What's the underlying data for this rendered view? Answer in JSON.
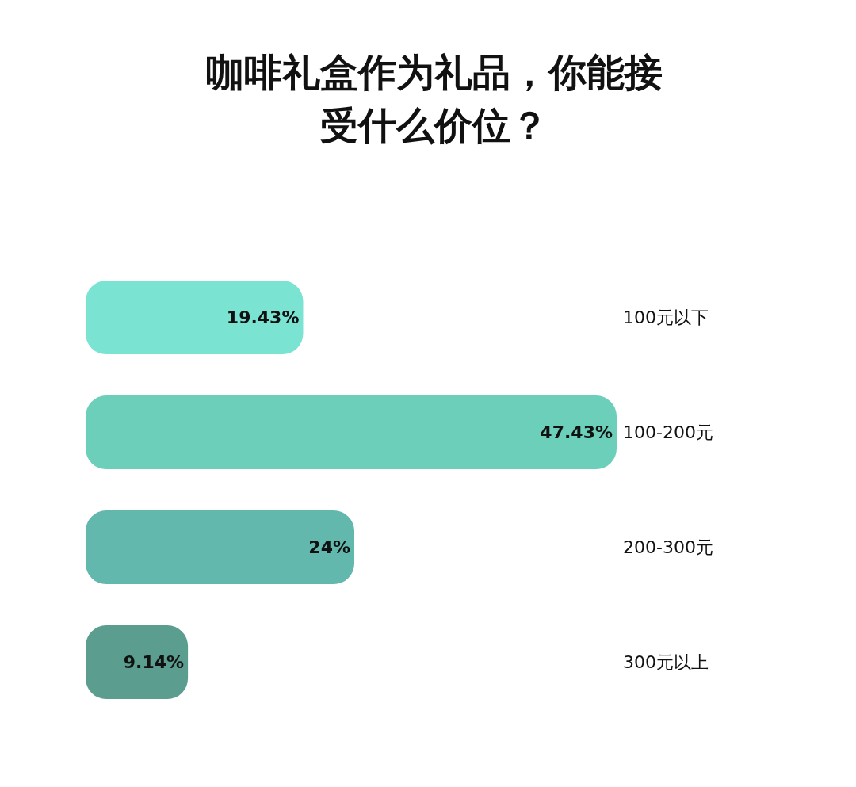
{
  "chart_data": {
    "type": "bar",
    "orientation": "horizontal",
    "title": "咖啡礼盒作为礼品，你能接受什么价位？",
    "categories": [
      "100元以下",
      "100-200元",
      "200-300元",
      "300元以上"
    ],
    "values": [
      19.43,
      47.43,
      24,
      9.14
    ],
    "value_labels": [
      "19.43%",
      "47.43%",
      "24%",
      "9.14%"
    ],
    "colors": [
      "#7ae3d2",
      "#6ccfba",
      "#63b8ae",
      "#5b9e8f"
    ]
  }
}
